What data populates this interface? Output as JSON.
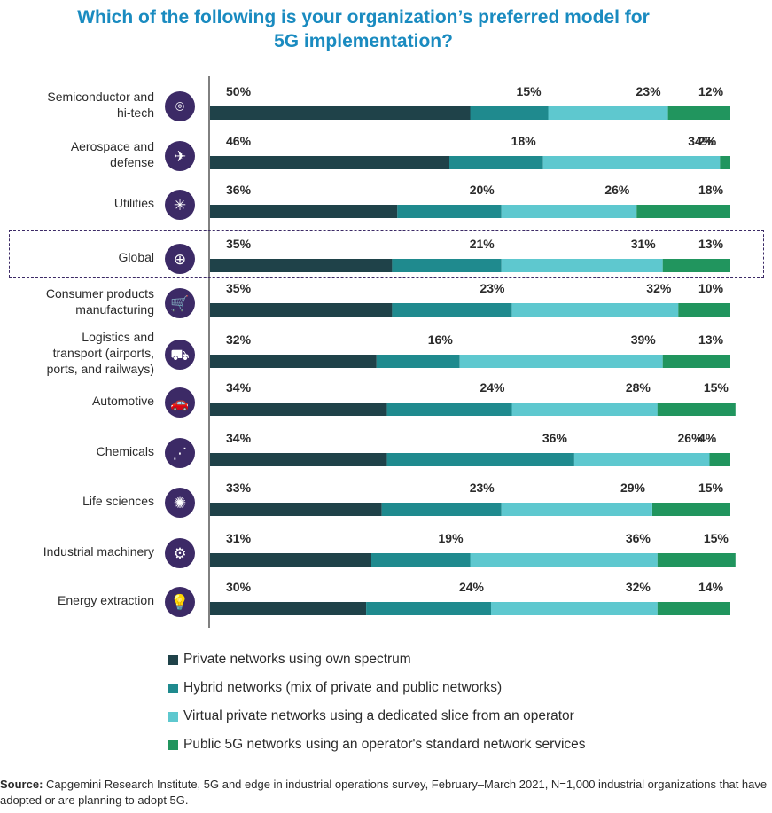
{
  "title_lines": [
    "Which of the following is your organization’s preferred model for",
    "5G implementation?"
  ],
  "colors": {
    "private": "#1f4249",
    "hybrid": "#1f8a8e",
    "virtual": "#5ec8cf",
    "public": "#21955e",
    "icon_bg": "#3c2a66",
    "title": "#1a8bc0"
  },
  "chart_data": {
    "type": "bar",
    "orientation": "horizontal",
    "stacked": true,
    "title": "Which of the following is your organization’s preferred model for 5G implementation?",
    "xlim": [
      0,
      100
    ],
    "categories": [
      "Semiconductor and hi-tech",
      "Aerospace and defense",
      "Utilities",
      "Global",
      "Consumer products manufacturing",
      "Logistics and transport (airports, ports, and railways)",
      "Automotive",
      "Chemicals",
      "Life sciences",
      "Industrial machinery",
      "Energy extraction"
    ],
    "category_lines": [
      [
        "Semiconductor and",
        "hi-tech"
      ],
      [
        "Aerospace and",
        "defense"
      ],
      [
        "Utilities"
      ],
      [
        "Global"
      ],
      [
        "Consumer products",
        "manufacturing"
      ],
      [
        "Logistics and",
        "transport (airports,",
        "ports, and railways)"
      ],
      [
        "Automotive"
      ],
      [
        "Chemicals"
      ],
      [
        "Life sciences"
      ],
      [
        "Industrial machinery"
      ],
      [
        "Energy extraction"
      ]
    ],
    "icons": [
      "chip-icon",
      "airplane-icon",
      "snowflake-icon",
      "globe-icon",
      "cart-icon",
      "truck-icon",
      "car-icon",
      "molecule-icon",
      "virus-icon",
      "gears-icon",
      "lightbulb-icon"
    ],
    "icon_glyphs": [
      "⌾",
      "✈",
      "✳",
      "⊕",
      "🛒",
      "⛟",
      "🚗",
      "⋰",
      "✺",
      "⚙",
      "💡"
    ],
    "highlight": "Global",
    "series": [
      {
        "name": "Private networks using own spectrum",
        "key": "private",
        "values": [
          50,
          46,
          36,
          35,
          35,
          32,
          34,
          34,
          33,
          31,
          30
        ]
      },
      {
        "name": "Hybrid networks (mix of private and public networks)",
        "key": "hybrid",
        "values": [
          15,
          18,
          20,
          21,
          23,
          16,
          24,
          36,
          23,
          19,
          24
        ]
      },
      {
        "name": "Virtual private networks using a dedicated slice from an operator",
        "key": "virtual",
        "values": [
          23,
          34,
          26,
          31,
          32,
          39,
          28,
          26,
          29,
          36,
          32
        ]
      },
      {
        "name": "Public 5G networks using an operator's standard network services",
        "key": "public",
        "values": [
          12,
          2,
          18,
          13,
          10,
          13,
          15,
          4,
          15,
          15,
          14
        ]
      }
    ],
    "legend_position": "bottom"
  },
  "source": {
    "label": "Source:",
    "text": " Capgemini Research Institute, 5G and edge in industrial operations survey, February–March 2021, N=1,000 industrial organizations that have adopted or are planning to adopt 5G."
  }
}
